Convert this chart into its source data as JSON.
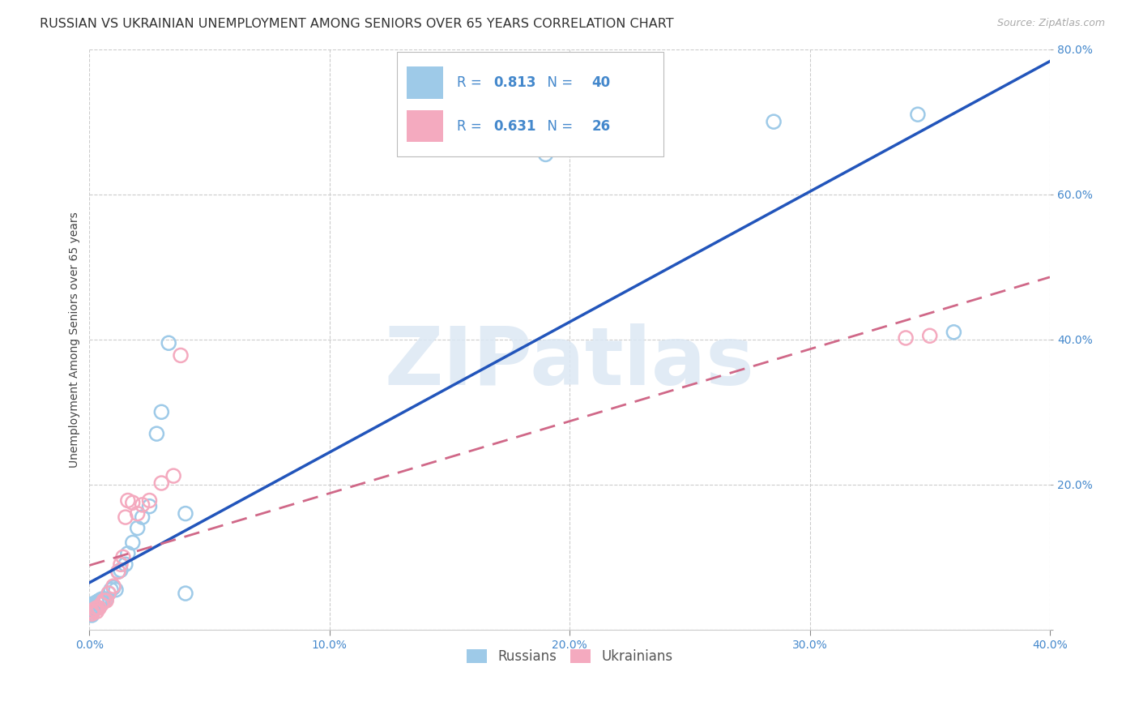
{
  "title": "RUSSIAN VS UKRAINIAN UNEMPLOYMENT AMONG SENIORS OVER 65 YEARS CORRELATION CHART",
  "source": "Source: ZipAtlas.com",
  "ylabel": "Unemployment Among Seniors over 65 years",
  "xlim": [
    0.0,
    0.4
  ],
  "ylim": [
    0.0,
    0.8
  ],
  "xticks": [
    0.0,
    0.1,
    0.2,
    0.3,
    0.4
  ],
  "yticks": [
    0.0,
    0.2,
    0.4,
    0.6,
    0.8
  ],
  "background_color": "#ffffff",
  "russian_color": "#9ECAE8",
  "ukrainian_color": "#F4AABF",
  "russian_line_color": "#2255BB",
  "ukrainian_line_color": "#D06888",
  "tick_color": "#4488CC",
  "grid_color": "#cccccc",
  "russian_R": 0.813,
  "russian_N": 40,
  "ukrainian_R": 0.631,
  "ukrainian_N": 26,
  "russian_x": [
    0.001,
    0.001,
    0.001,
    0.001,
    0.001,
    0.001,
    0.001,
    0.001,
    0.001,
    0.001,
    0.002,
    0.002,
    0.003,
    0.003,
    0.004,
    0.005,
    0.005,
    0.006,
    0.007,
    0.008,
    0.009,
    0.01,
    0.011,
    0.012,
    0.013,
    0.015,
    0.016,
    0.018,
    0.02,
    0.022,
    0.025,
    0.028,
    0.03,
    0.033,
    0.04,
    0.04,
    0.19,
    0.285,
    0.345,
    0.36
  ],
  "russian_y": [
    0.02,
    0.022,
    0.025,
    0.025,
    0.028,
    0.03,
    0.03,
    0.032,
    0.035,
    0.035,
    0.03,
    0.032,
    0.03,
    0.038,
    0.04,
    0.038,
    0.042,
    0.042,
    0.042,
    0.05,
    0.055,
    0.058,
    0.055,
    0.08,
    0.082,
    0.09,
    0.105,
    0.12,
    0.14,
    0.155,
    0.17,
    0.27,
    0.3,
    0.395,
    0.05,
    0.16,
    0.655,
    0.7,
    0.71,
    0.41
  ],
  "ukrainian_x": [
    0.001,
    0.001,
    0.001,
    0.002,
    0.003,
    0.003,
    0.004,
    0.005,
    0.006,
    0.007,
    0.008,
    0.01,
    0.012,
    0.013,
    0.014,
    0.015,
    0.016,
    0.018,
    0.02,
    0.022,
    0.025,
    0.03,
    0.035,
    0.038,
    0.34,
    0.35
  ],
  "ukrainian_y": [
    0.022,
    0.025,
    0.025,
    0.028,
    0.025,
    0.03,
    0.03,
    0.035,
    0.04,
    0.04,
    0.05,
    0.06,
    0.08,
    0.09,
    0.1,
    0.155,
    0.178,
    0.175,
    0.16,
    0.172,
    0.178,
    0.202,
    0.212,
    0.378,
    0.402,
    0.405
  ],
  "watermark_text": "ZIPatlas",
  "watermark_color": "#dce8f4",
  "legend_text_color": "#4488CC",
  "title_fontsize": 11.5,
  "tick_fontsize": 10,
  "label_fontsize": 10
}
